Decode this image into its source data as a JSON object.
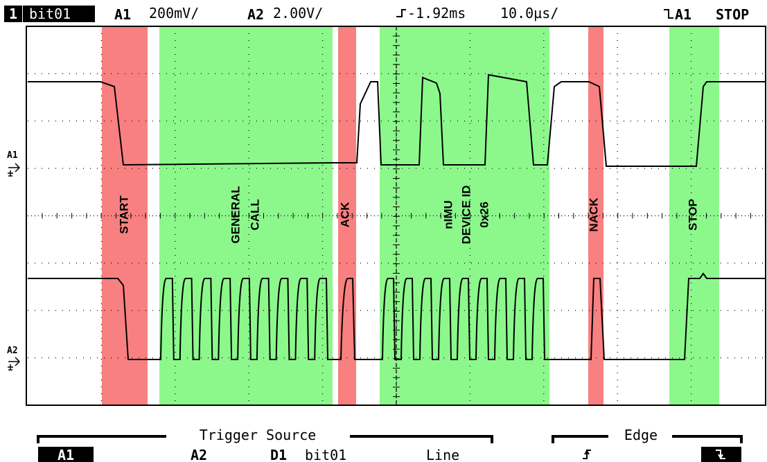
{
  "header": {
    "channel": "1",
    "label": "bit01",
    "a1": {
      "name": "A1",
      "scale": "200mV/"
    },
    "a2": {
      "name": "A2",
      "scale": "2.00V/"
    },
    "delay": "-1.92ms",
    "timebase": "10.0µs/",
    "trigger": "A1",
    "status": "STOP"
  },
  "markers": [
    "A1",
    "A2"
  ],
  "annotations": [
    [
      "START"
    ],
    [
      "GENERAL",
      "CALL"
    ],
    [
      "ACK"
    ],
    [
      "nIMU",
      "DEVICE ID",
      "0x26"
    ],
    [
      "NACK"
    ],
    [
      "STOP"
    ]
  ],
  "softkeys": {
    "trigger_source": {
      "title": "Trigger Source",
      "options": [
        "A1",
        "A2",
        "D1",
        "bit01",
        "Line"
      ]
    },
    "edge": {
      "title": "Edge"
    }
  }
}
